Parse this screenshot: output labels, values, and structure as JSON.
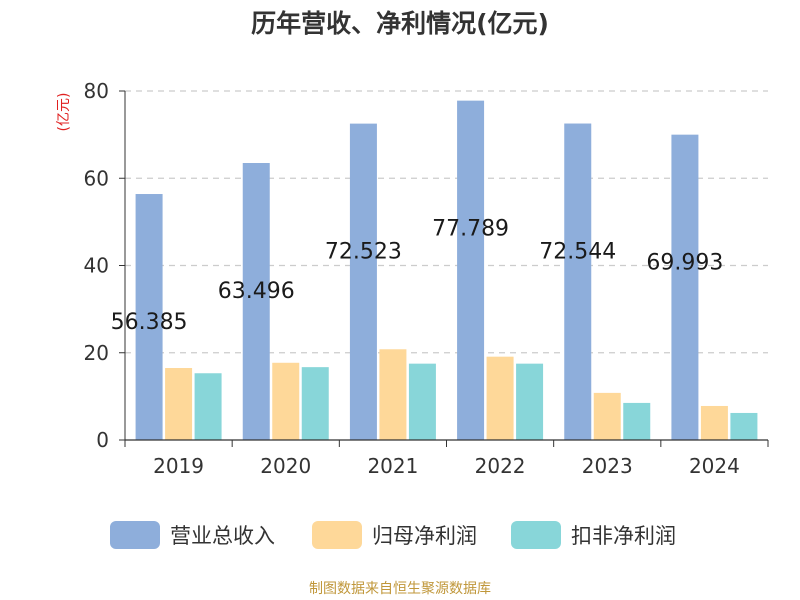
{
  "chart_data": {
    "type": "bar",
    "title": "历年营收、净利情况(亿元)",
    "ylabel": "(亿元)",
    "xlabel": "",
    "categories": [
      "2019",
      "2020",
      "2021",
      "2022",
      "2023",
      "2024"
    ],
    "series": [
      {
        "name": "营业总收入",
        "color": "#8eaedb",
        "values": [
          56.385,
          63.496,
          72.523,
          77.789,
          72.544,
          69.993
        ]
      },
      {
        "name": "归母净利润",
        "color": "#fed899",
        "values": [
          16.5,
          17.7,
          20.8,
          19.1,
          10.8,
          7.8
        ]
      },
      {
        "name": "扣非净利润",
        "color": "#88d6d9",
        "values": [
          15.3,
          16.7,
          17.5,
          17.5,
          8.5,
          6.2
        ]
      }
    ],
    "data_labels": [
      "56.385",
      "63.496",
      "72.523",
      "77.789",
      "72.544",
      "69.993"
    ],
    "yticks": [
      "0",
      "20",
      "40",
      "60",
      "80"
    ],
    "ylim": [
      0,
      80
    ],
    "grid": true,
    "legend_position": "bottom",
    "source": "制图数据来自恒生聚源数据库",
    "colors": {
      "axis": "#333333",
      "grid": "#cccccc",
      "ylabel": "#e02020",
      "source": "#c0973a"
    }
  }
}
